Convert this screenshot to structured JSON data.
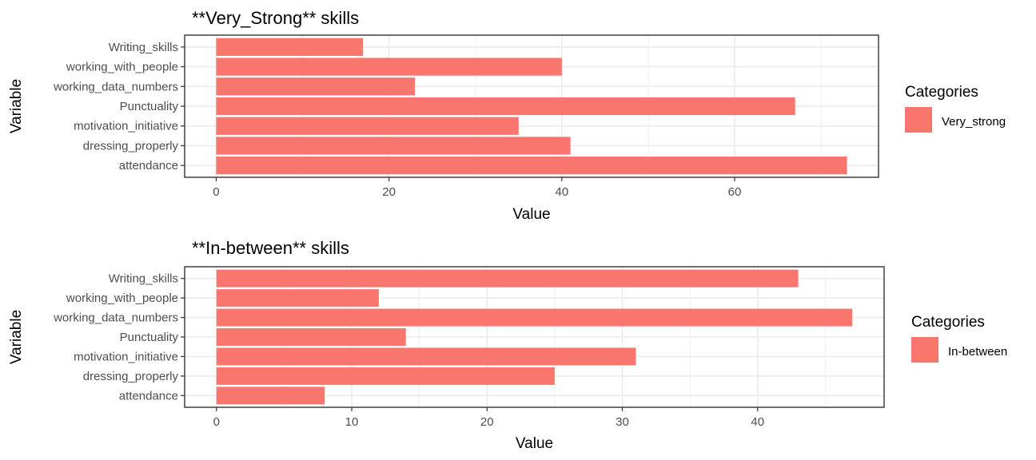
{
  "chart_data": [
    {
      "type": "bar",
      "orientation": "horizontal",
      "title": "**Very_Strong** skills",
      "xlabel": "Value",
      "ylabel": "Variable",
      "categories": [
        "attendance",
        "dressing_properly",
        "motivation_initiative",
        "Punctuality",
        "working_data_numbers",
        "working_with_people",
        "Writing_skills"
      ],
      "series": [
        {
          "name": "Very_strong",
          "values": [
            73,
            41,
            35,
            67,
            23,
            40,
            17
          ]
        }
      ],
      "xlim": [
        -3.65,
        76.65
      ],
      "xticks": [
        0,
        20,
        40,
        60
      ],
      "grid": true,
      "legend": {
        "title": "Categories",
        "position": "right"
      },
      "colors": {
        "bar": "#F8766D",
        "grid": "#EBEBEB",
        "panel_border": "#333333"
      }
    },
    {
      "type": "bar",
      "orientation": "horizontal",
      "title": "**In-between** skills",
      "xlabel": "Value",
      "ylabel": "Variable",
      "categories": [
        "attendance",
        "dressing_properly",
        "motivation_initiative",
        "Punctuality",
        "working_data_numbers",
        "working_with_people",
        "Writing_skills"
      ],
      "series": [
        {
          "name": "In-between",
          "values": [
            8,
            25,
            31,
            14,
            47,
            12,
            43
          ]
        }
      ],
      "xlim": [
        -2.35,
        49.35
      ],
      "xticks": [
        0,
        10,
        20,
        30,
        40
      ],
      "grid": true,
      "legend": {
        "title": "Categories",
        "position": "right"
      },
      "colors": {
        "bar": "#F8766D",
        "grid": "#EBEBEB",
        "panel_border": "#333333"
      }
    }
  ]
}
